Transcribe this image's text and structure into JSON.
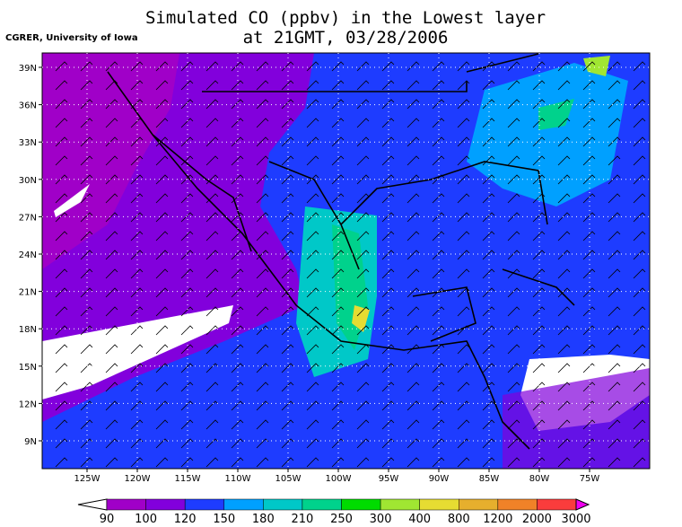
{
  "header": {
    "title": "Simulated CO (ppbv) in the Lowest layer",
    "subtitle": "at 21GMT, 03/28/2006",
    "credit": "CGRER, University of Iowa"
  },
  "map": {
    "lat_labels": [
      "39N",
      "36N",
      "33N",
      "30N",
      "27N",
      "24N",
      "21N",
      "18N",
      "15N",
      "12N",
      "9N"
    ],
    "lon_labels": [
      "125W",
      "120W",
      "115W",
      "110W",
      "105W",
      "100W",
      "95W",
      "90W",
      "85W",
      "80W",
      "75W"
    ]
  },
  "colorbar": {
    "labels": [
      90,
      100,
      120,
      150,
      180,
      210,
      250,
      300,
      400,
      800,
      1200,
      2000,
      3000
    ],
    "colors": [
      "#a000c8",
      "#8200dc",
      "#1e3cff",
      "#00a0ff",
      "#00c8c8",
      "#00d28c",
      "#00dc00",
      "#a0e632",
      "#e6dc32",
      "#e6af2d",
      "#f08228",
      "#fa3c3c"
    ],
    "below_color": "#ffffff",
    "above_color": "#f000f0"
  }
}
